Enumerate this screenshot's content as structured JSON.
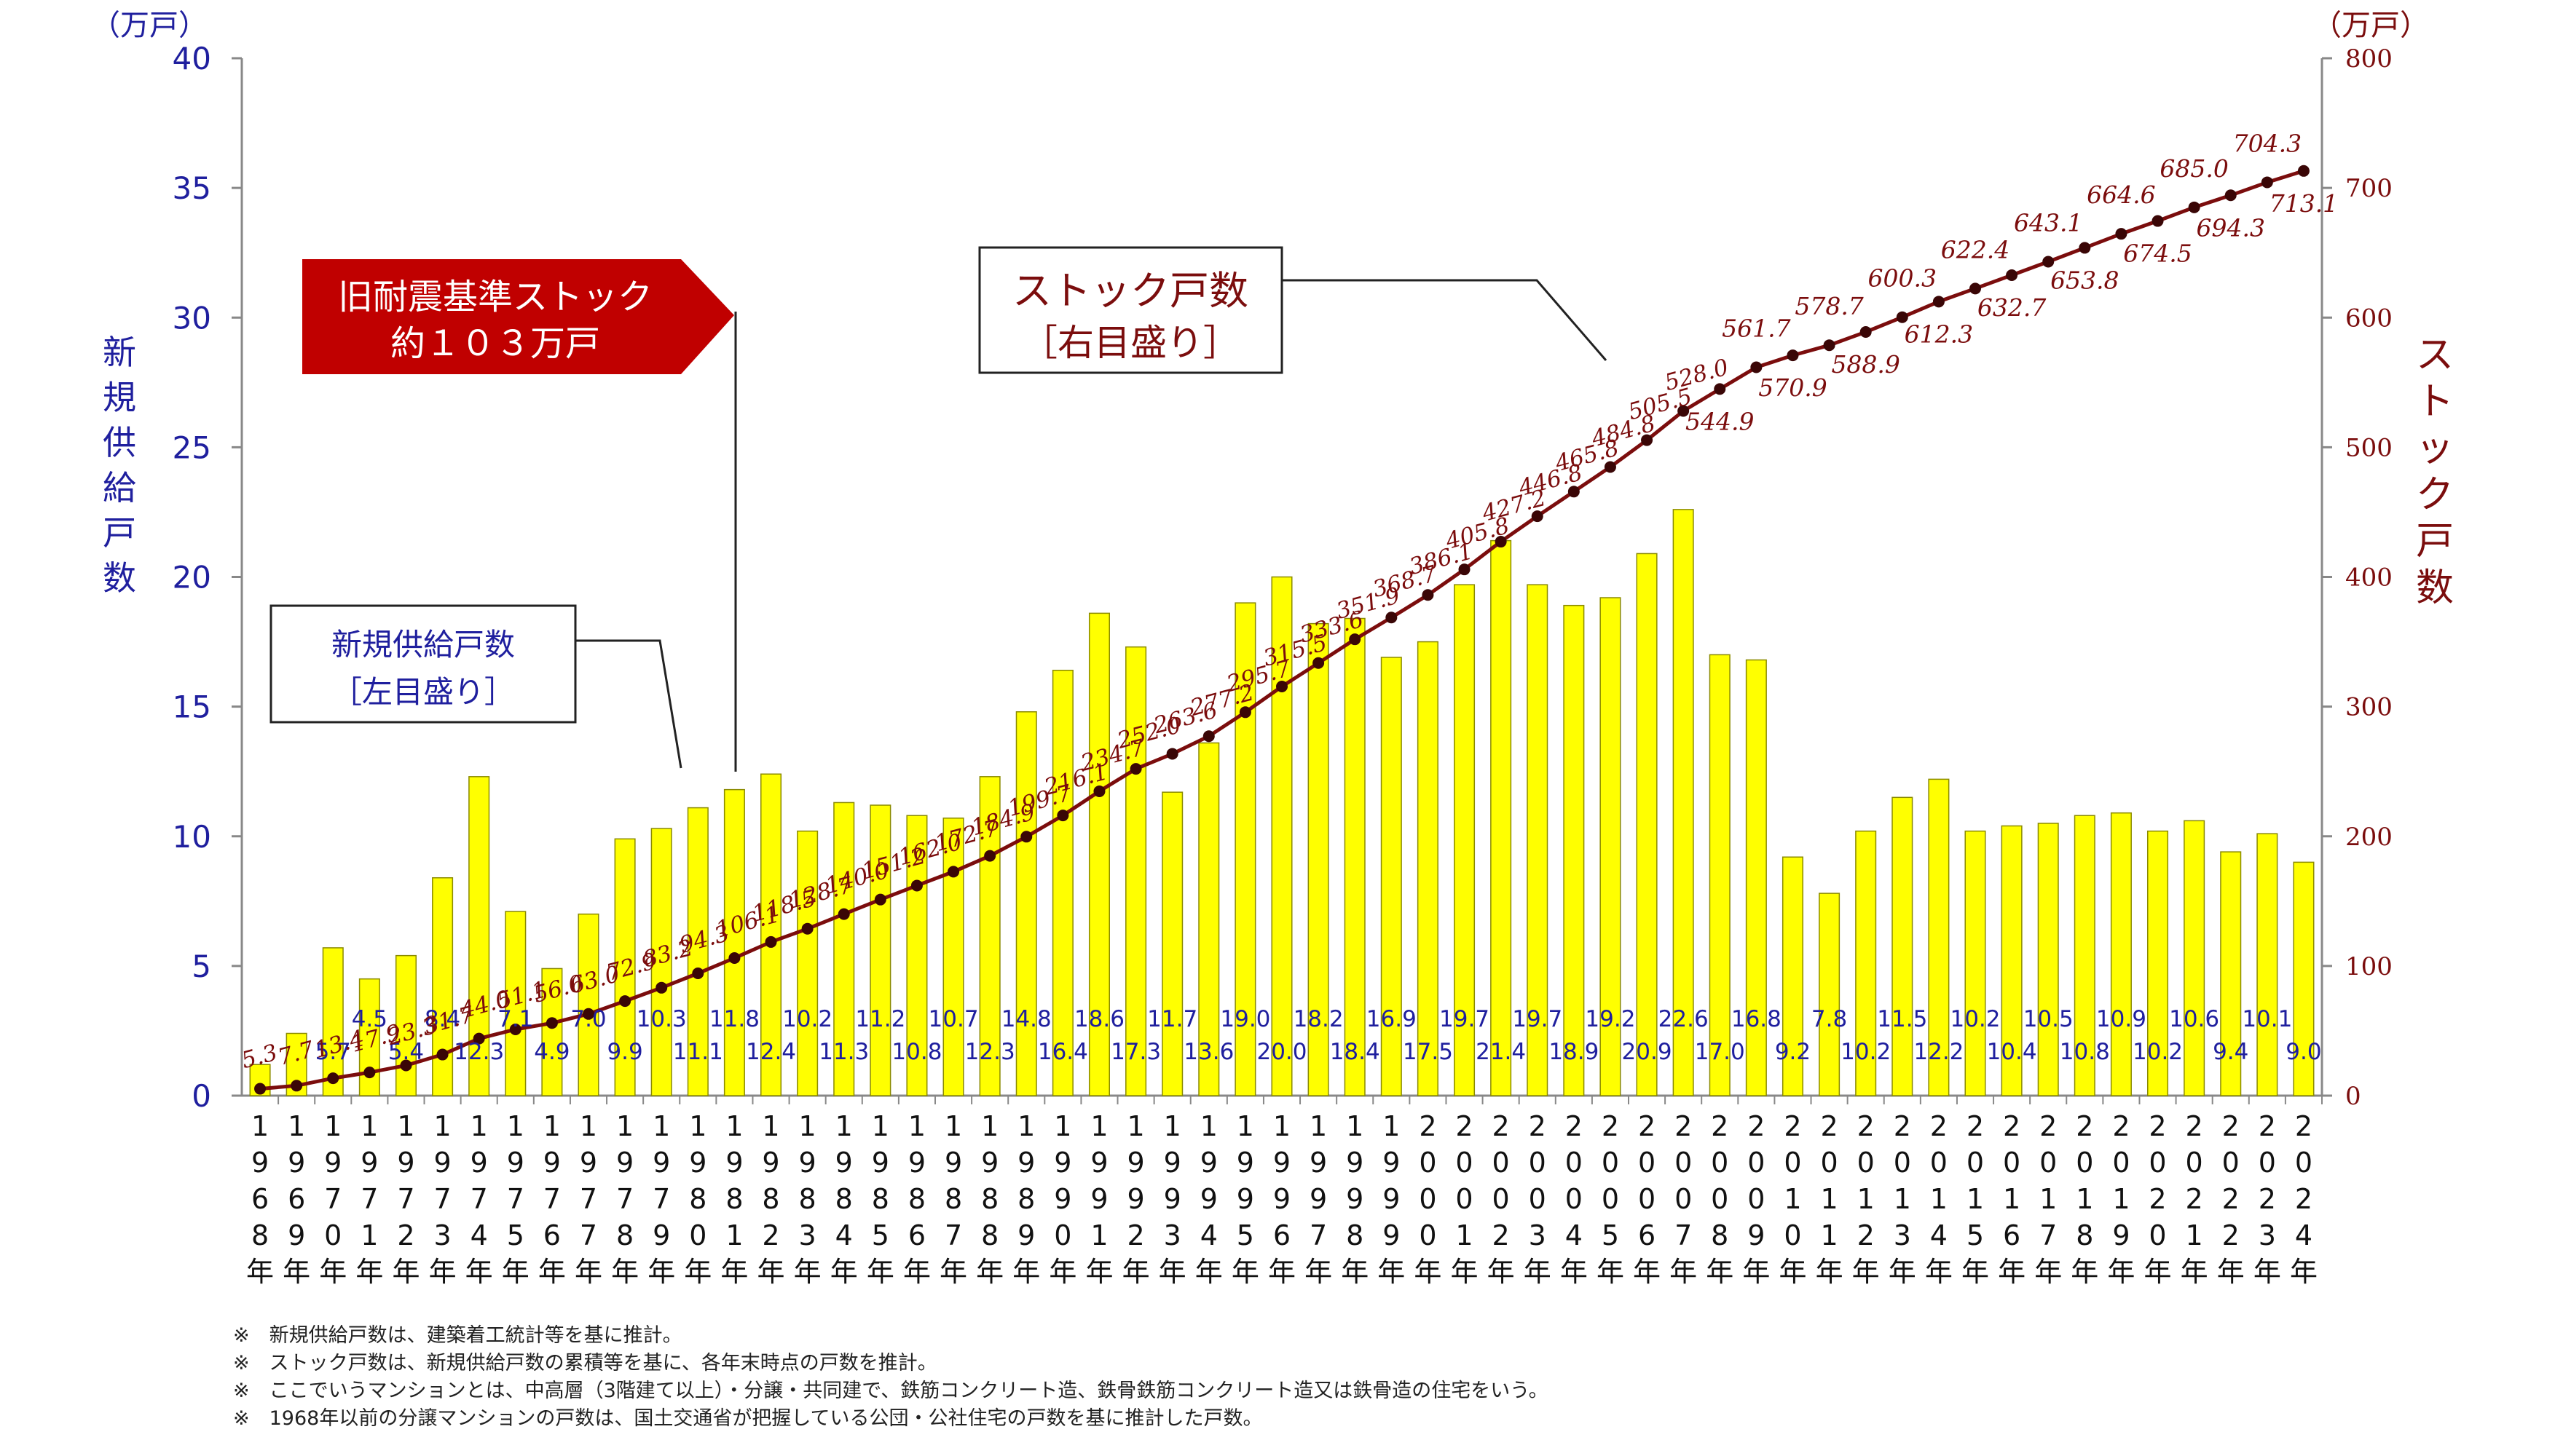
{
  "chart_data": {
    "type": "bar+line",
    "title": "",
    "left_axis": {
      "unit": "（万戸）",
      "label": "新規供給戸数",
      "range": [
        0,
        40
      ],
      "ticks": [
        "0",
        "5",
        "10",
        "15",
        "20",
        "25",
        "30",
        "35",
        "40"
      ]
    },
    "right_axis": {
      "unit": "（万戸）",
      "label": "ストック戸数",
      "range": [
        0,
        800
      ],
      "ticks": [
        "0",
        "100",
        "200",
        "300",
        "400",
        "500",
        "600",
        "700",
        "800"
      ]
    },
    "categories": [
      "1968年",
      "1969年",
      "1970年",
      "1971年",
      "1972年",
      "1973年",
      "1974年",
      "1975年",
      "1976年",
      "1977年",
      "1978年",
      "1979年",
      "1980年",
      "1981年",
      "1982年",
      "1983年",
      "1984年",
      "1985年",
      "1986年",
      "1987年",
      "1988年",
      "1989年",
      "1990年",
      "1991年",
      "1992年",
      "1993年",
      "1994年",
      "1995年",
      "1996年",
      "1997年",
      "1998年",
      "1999年",
      "2000年",
      "2001年",
      "2002年",
      "2003年",
      "2004年",
      "2005年",
      "2006年",
      "2007年",
      "2008年",
      "2009年",
      "2010年",
      "2011年",
      "2012年",
      "2013年",
      "2014年",
      "2015年",
      "2016年",
      "2017年",
      "2018年",
      "2019年",
      "2020年",
      "2021年",
      "2022年",
      "2023年",
      "2024年"
    ],
    "series": [
      {
        "name": "新規供給戸数",
        "axis": "left",
        "color": "#ffff00",
        "values": [
          1.2,
          2.4,
          5.7,
          4.5,
          5.4,
          8.4,
          12.3,
          7.1,
          4.9,
          7.0,
          9.9,
          10.3,
          11.1,
          11.8,
          12.4,
          10.2,
          11.3,
          11.2,
          10.8,
          10.7,
          12.3,
          14.8,
          16.4,
          18.6,
          17.3,
          11.7,
          13.6,
          19.0,
          20.0,
          18.2,
          18.4,
          16.9,
          17.5,
          19.7,
          21.4,
          19.7,
          18.9,
          19.2,
          20.9,
          22.6,
          17.0,
          16.8,
          9.2,
          7.8,
          10.2,
          11.5,
          12.2,
          10.2,
          10.4,
          10.5,
          10.8,
          10.9,
          10.2,
          10.6,
          9.4,
          10.1,
          9.0
        ],
        "labels": [
          "",
          "",
          "5.7",
          "4.5",
          "5.4",
          "8.4",
          "12.3",
          "7.1",
          "4.9",
          "7.0",
          "9.9",
          "10.3",
          "11.1",
          "11.8",
          "12.4",
          "10.2",
          "11.3",
          "11.2",
          "10.8",
          "10.7",
          "12.3",
          "14.8",
          "16.4",
          "18.6",
          "17.3",
          "11.7",
          "13.6",
          "19.0",
          "20.0",
          "18.2",
          "18.4",
          "16.9",
          "17.5",
          "19.7",
          "21.4",
          "19.7",
          "18.9",
          "19.2",
          "20.9",
          "22.6",
          "17.0",
          "16.8",
          "9.2",
          "7.8",
          "10.2",
          "11.5",
          "12.2",
          "10.2",
          "10.4",
          "10.5",
          "10.8",
          "10.9",
          "10.2",
          "10.6",
          "9.4",
          "10.1",
          "9.0"
        ]
      },
      {
        "name": "ストック戸数",
        "axis": "right",
        "color": "#7b0d0d",
        "values": [
          5.3,
          7.7,
          13.4,
          17.9,
          23.3,
          31.7,
          44.0,
          51.1,
          56.0,
          63.0,
          72.9,
          83.2,
          94.3,
          106.1,
          118.5,
          128.7,
          140.0,
          151.2,
          162.0,
          172.7,
          184.9,
          199.7,
          216.1,
          234.7,
          252.0,
          263.6,
          277.2,
          295.7,
          315.5,
          333.6,
          351.9,
          368.7,
          386.1,
          405.8,
          427.2,
          446.8,
          465.8,
          484.8,
          505.5,
          528.0,
          544.9,
          561.7,
          570.9,
          578.7,
          588.9,
          600.3,
          612.3,
          622.4,
          632.7,
          643.1,
          653.8,
          664.6,
          674.5,
          685.0,
          694.3,
          704.3,
          713.1
        ],
        "labels": [
          "5.3",
          "7.7",
          "13.4",
          "17.9",
          "23.3",
          "31.7",
          "44.0",
          "51.1",
          "56.0",
          "63.0",
          "72.9",
          "83.2",
          "94.3",
          "106.1",
          "118.5",
          "128.7",
          "140.0",
          "151.2",
          "162.0",
          "172.7",
          "184.9",
          "199.7",
          "216.1",
          "234.7",
          "252.0",
          "263.6",
          "277.2",
          "295.7",
          "315.5",
          "333.6",
          "351.9",
          "368.7",
          "386.1",
          "405.8",
          "427.2",
          "446.8",
          "465.8",
          "484.8",
          "505.5",
          "528.0",
          "544.9",
          "561.7",
          "570.9",
          "578.7",
          "588.9",
          "600.3",
          "612.3",
          "622.4",
          "632.7",
          "643.1",
          "653.8",
          "664.6",
          "674.5",
          "685.0",
          "694.3",
          "704.3",
          "713.1"
        ]
      }
    ],
    "callouts": {
      "new_supply": [
        "新規供給戸数",
        "［左目盛り］"
      ],
      "stock": [
        "ストック戸数",
        "［右目盛り］"
      ],
      "old_standard": [
        "旧耐震基準ストック",
        "約１０３万戸"
      ]
    },
    "colors": {
      "bar_fill": "#ffff00",
      "bar_stroke": "#8a8a00",
      "line": "#7b0d0d",
      "left_axis_text": "#1f1f9e",
      "right_axis_text": "#7b0d0d",
      "old_standard_box": "#c00000"
    }
  },
  "notes": [
    "※　新規供給戸数は、建築着工統計等を基に推計。",
    "※　ストック戸数は、新規供給戸数の累積等を基に、各年末時点の戸数を推計。",
    "※　ここでいうマンションとは、中高層（3階建て以上）・分譲・共同建で、鉄筋コンクリート造、鉄骨鉄筋コンクリート造又は鉄骨造の住宅をいう。",
    "※　1968年以前の分譲マンションの戸数は、国土交通省が把握している公団・公社住宅の戸数を基に推計した戸数。"
  ]
}
